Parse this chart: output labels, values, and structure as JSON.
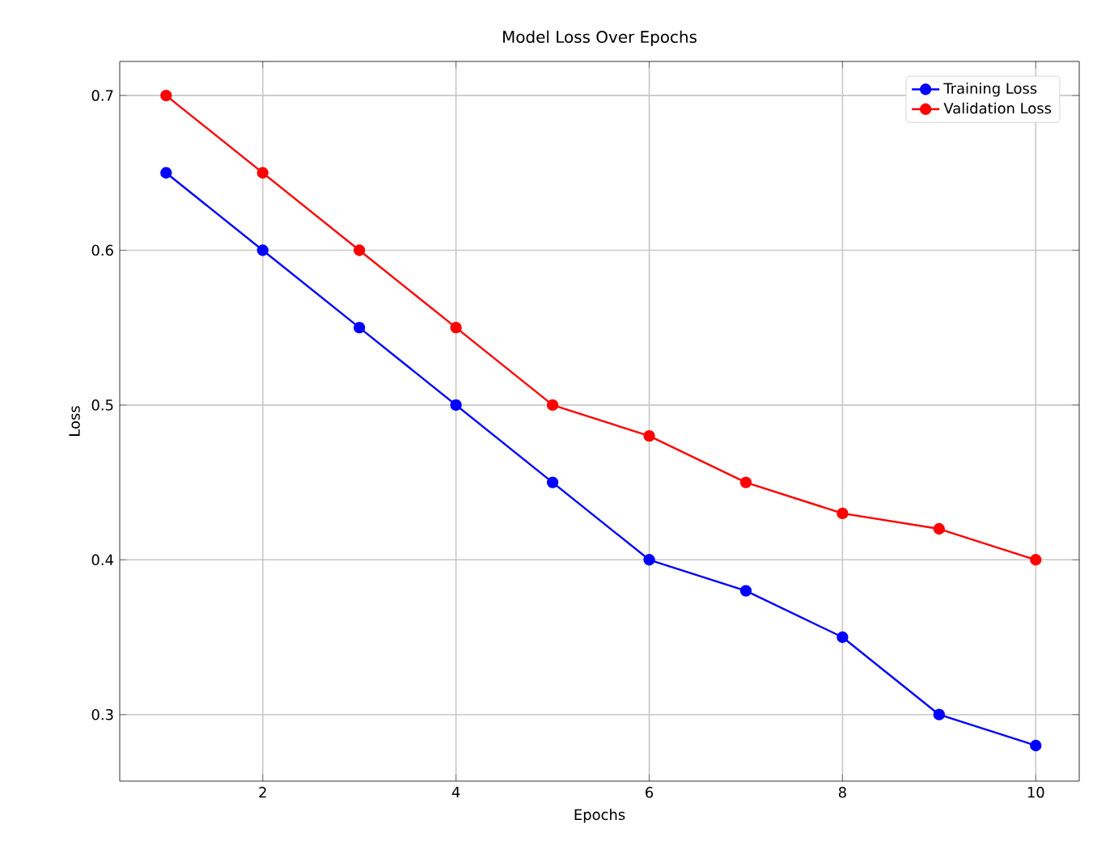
{
  "chart_data": {
    "type": "line",
    "title": "Model Loss Over Epochs",
    "xlabel": "Epochs",
    "ylabel": "Loss",
    "x": [
      1,
      2,
      3,
      4,
      5,
      6,
      7,
      8,
      9,
      10
    ],
    "series": [
      {
        "name": "Training Loss",
        "color": "#0000ff",
        "values": [
          0.65,
          0.6,
          0.55,
          0.5,
          0.45,
          0.4,
          0.38,
          0.35,
          0.3,
          0.28
        ]
      },
      {
        "name": "Validation Loss",
        "color": "#ff0000",
        "values": [
          0.7,
          0.65,
          0.6,
          0.55,
          0.5,
          0.48,
          0.45,
          0.43,
          0.42,
          0.4
        ]
      }
    ],
    "xlim": [
      0.52,
      10.45
    ],
    "ylim": [
      0.257,
      0.722
    ],
    "xticks": [
      2,
      4,
      6,
      8,
      10
    ],
    "yticks": [
      0.3,
      0.4,
      0.5,
      0.6,
      0.7
    ],
    "grid": true,
    "legend": "top right",
    "marker": "circle",
    "line_style": "solid"
  }
}
